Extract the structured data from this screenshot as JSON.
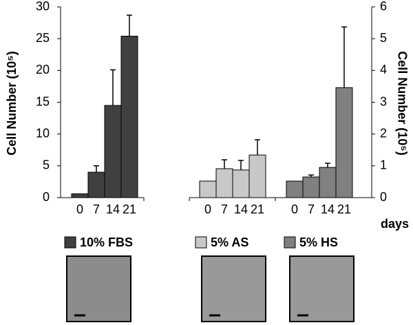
{
  "chart_data": {
    "type": "bar",
    "y_label": "Cell Number (10⁵)",
    "y2_label": "Cell Number (10⁵)",
    "x_label": "days",
    "categories": [
      "0",
      "7",
      "14",
      "21"
    ],
    "ylim": [
      0,
      30
    ],
    "yticks": [
      0,
      5,
      10,
      15,
      20,
      25,
      30
    ],
    "y2lim": [
      0,
      6
    ],
    "y2ticks": [
      0,
      1,
      2,
      3,
      4,
      5,
      6
    ],
    "series": [
      {
        "name": "10% FBS",
        "color": "#404040",
        "values": [
          0.6,
          4.0,
          14.5,
          25.4
        ],
        "errors": [
          0,
          1.0,
          5.6,
          3.3
        ]
      },
      {
        "name": "5% AS",
        "color": "#c8c8c8",
        "axis": "y2",
        "values": [
          0.52,
          0.91,
          0.87,
          1.34
        ],
        "errors": [
          0,
          0.28,
          0.3,
          0.48
        ]
      },
      {
        "name": "5% HS",
        "color": "#808080",
        "axis": "y2",
        "values": [
          0.52,
          0.65,
          0.95,
          3.46
        ],
        "errors": [
          0,
          0.06,
          0.13,
          1.91
        ]
      }
    ]
  }
}
